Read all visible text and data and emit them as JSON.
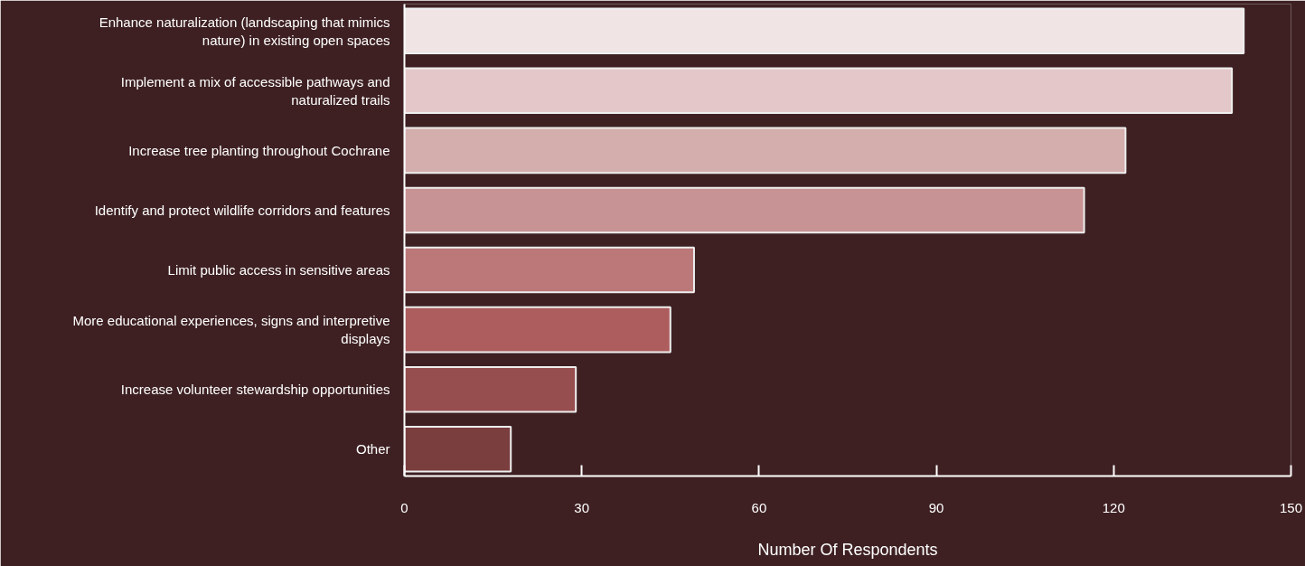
{
  "chart_data": {
    "type": "bar",
    "orientation": "horizontal",
    "xlabel": "Number Of Respondents",
    "categories": [
      "Enhance naturalization (landscaping that mimics nature) in existing open spaces",
      "Implement a mix of accessible pathways and naturalized trails",
      "Increase tree planting throughout Cochrane",
      "Identify and protect wildlife corridors and features",
      "Limit public access in sensitive areas",
      "More educational experiences, signs and interpretive displays",
      "Increase volunteer stewardship opportunities",
      "Other"
    ],
    "values": [
      142,
      140,
      122,
      115,
      49,
      45,
      29,
      18
    ],
    "colors": [
      "#f0e4e4",
      "#e4c8c9",
      "#d4adad",
      "#c79394",
      "#bc7778",
      "#ad5d5e",
      "#974e4f",
      "#7a3e3f"
    ],
    "xlim": [
      0,
      150
    ],
    "xticks": [
      0,
      30,
      60,
      90,
      120,
      150
    ],
    "grid": false
  }
}
